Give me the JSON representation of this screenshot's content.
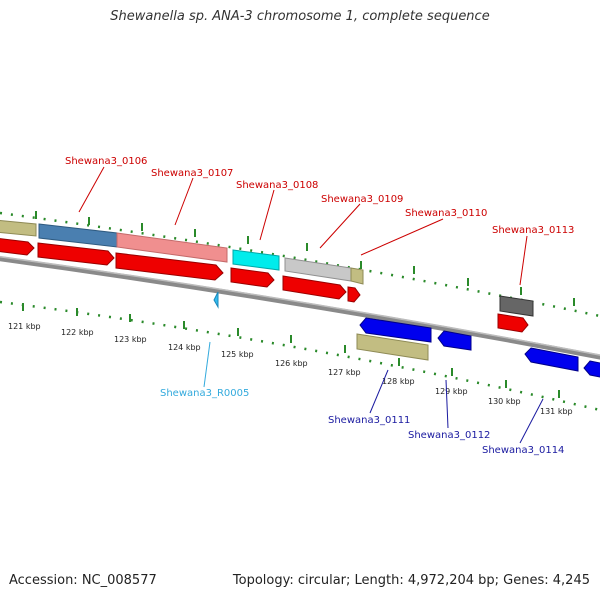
{
  "title": "Shewanella sp. ANA-3 chromosome 1, complete sequence",
  "footer": {
    "accession": "Accession: NC_008577",
    "summary": "Topology: circular; Length: 4,972,204 bp; Genes: 4,245"
  },
  "colors": {
    "forward_label": "#cc0000",
    "reverse_label": "#1a1aa0",
    "rna_label": "#33aadd",
    "tick": "#2a8a2a",
    "backbone": "#8a8a8a"
  },
  "gene_labels": [
    {
      "id": "Shewana3_0106",
      "strand": "forward"
    },
    {
      "id": "Shewana3_0107",
      "strand": "forward"
    },
    {
      "id": "Shewana3_0108",
      "strand": "forward"
    },
    {
      "id": "Shewana3_0109",
      "strand": "forward"
    },
    {
      "id": "Shewana3_0110",
      "strand": "forward"
    },
    {
      "id": "Shewana3_0113",
      "strand": "forward"
    },
    {
      "id": "Shewana3_R0005",
      "strand": "rna"
    },
    {
      "id": "Shewana3_0111",
      "strand": "reverse"
    },
    {
      "id": "Shewana3_0112",
      "strand": "reverse"
    },
    {
      "id": "Shewana3_0114",
      "strand": "reverse"
    }
  ],
  "kbp_ticks": [
    "121 kbp",
    "122 kbp",
    "123 kbp",
    "124 kbp",
    "125 kbp",
    "126 kbp",
    "127 kbp",
    "128 kbp",
    "129 kbp",
    "130 kbp",
    "131 kbp"
  ]
}
